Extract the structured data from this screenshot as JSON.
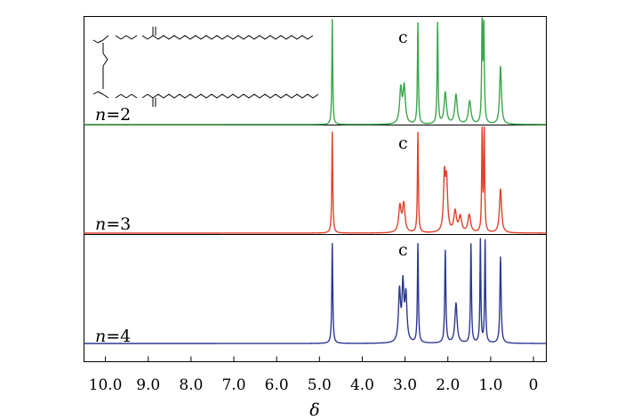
{
  "chart_data": {
    "type": "line",
    "title": "",
    "xlabel": "δ",
    "ylabel": "",
    "x_reversed": true,
    "xlim": [
      10.5,
      -0.3
    ],
    "x_ticks": [
      10.0,
      9.0,
      8.0,
      7.0,
      6.0,
      5.0,
      4.0,
      3.0,
      2.0,
      1.0,
      0
    ],
    "x_tick_labels": [
      "10.0",
      "9.0",
      "8.0",
      "7.0",
      "6.0",
      "5.0",
      "4.0",
      "3.0",
      "2.0",
      "1.0",
      "0"
    ],
    "grid": false,
    "legend": "none",
    "series": [
      {
        "name": "n=2",
        "label_prefix": "n",
        "label_suffix": "=2",
        "color": "#3aa64a",
        "peak_label": "c",
        "peaks": [
          {
            "x": 4.7,
            "h": 1.0
          },
          {
            "x": 3.1,
            "h": 0.33
          },
          {
            "x": 3.02,
            "h": 0.35
          },
          {
            "x": 2.7,
            "h": 0.96
          },
          {
            "x": 2.24,
            "h": 0.96
          },
          {
            "x": 2.06,
            "h": 0.3
          },
          {
            "x": 1.81,
            "h": 0.28
          },
          {
            "x": 1.49,
            "h": 0.22
          },
          {
            "x": 1.2,
            "h": 0.98
          },
          {
            "x": 1.16,
            "h": 0.9
          },
          {
            "x": 0.77,
            "h": 0.55
          }
        ]
      },
      {
        "name": "n=3",
        "label_prefix": "n",
        "label_suffix": "=3",
        "color": "#e0422c",
        "peak_label": "c",
        "peaks": [
          {
            "x": 4.7,
            "h": 0.97
          },
          {
            "x": 3.12,
            "h": 0.25
          },
          {
            "x": 3.03,
            "h": 0.27
          },
          {
            "x": 2.7,
            "h": 0.96
          },
          {
            "x": 2.08,
            "h": 0.52
          },
          {
            "x": 2.03,
            "h": 0.47
          },
          {
            "x": 1.83,
            "h": 0.2
          },
          {
            "x": 1.71,
            "h": 0.15
          },
          {
            "x": 1.5,
            "h": 0.17
          },
          {
            "x": 1.2,
            "h": 0.99
          },
          {
            "x": 1.15,
            "h": 0.99
          },
          {
            "x": 0.77,
            "h": 0.42
          }
        ]
      },
      {
        "name": "n=4",
        "label_prefix": "n",
        "label_suffix": "=4",
        "color": "#2b3990",
        "peak_label": "c",
        "peaks": [
          {
            "x": 4.7,
            "h": 0.95
          },
          {
            "x": 3.13,
            "h": 0.48
          },
          {
            "x": 3.05,
            "h": 0.53
          },
          {
            "x": 2.98,
            "h": 0.44
          },
          {
            "x": 2.7,
            "h": 0.94
          },
          {
            "x": 2.06,
            "h": 0.88
          },
          {
            "x": 1.81,
            "h": 0.38
          },
          {
            "x": 1.46,
            "h": 0.94
          },
          {
            "x": 1.24,
            "h": 0.98
          },
          {
            "x": 1.13,
            "h": 0.97
          },
          {
            "x": 0.77,
            "h": 0.82
          }
        ]
      }
    ]
  }
}
